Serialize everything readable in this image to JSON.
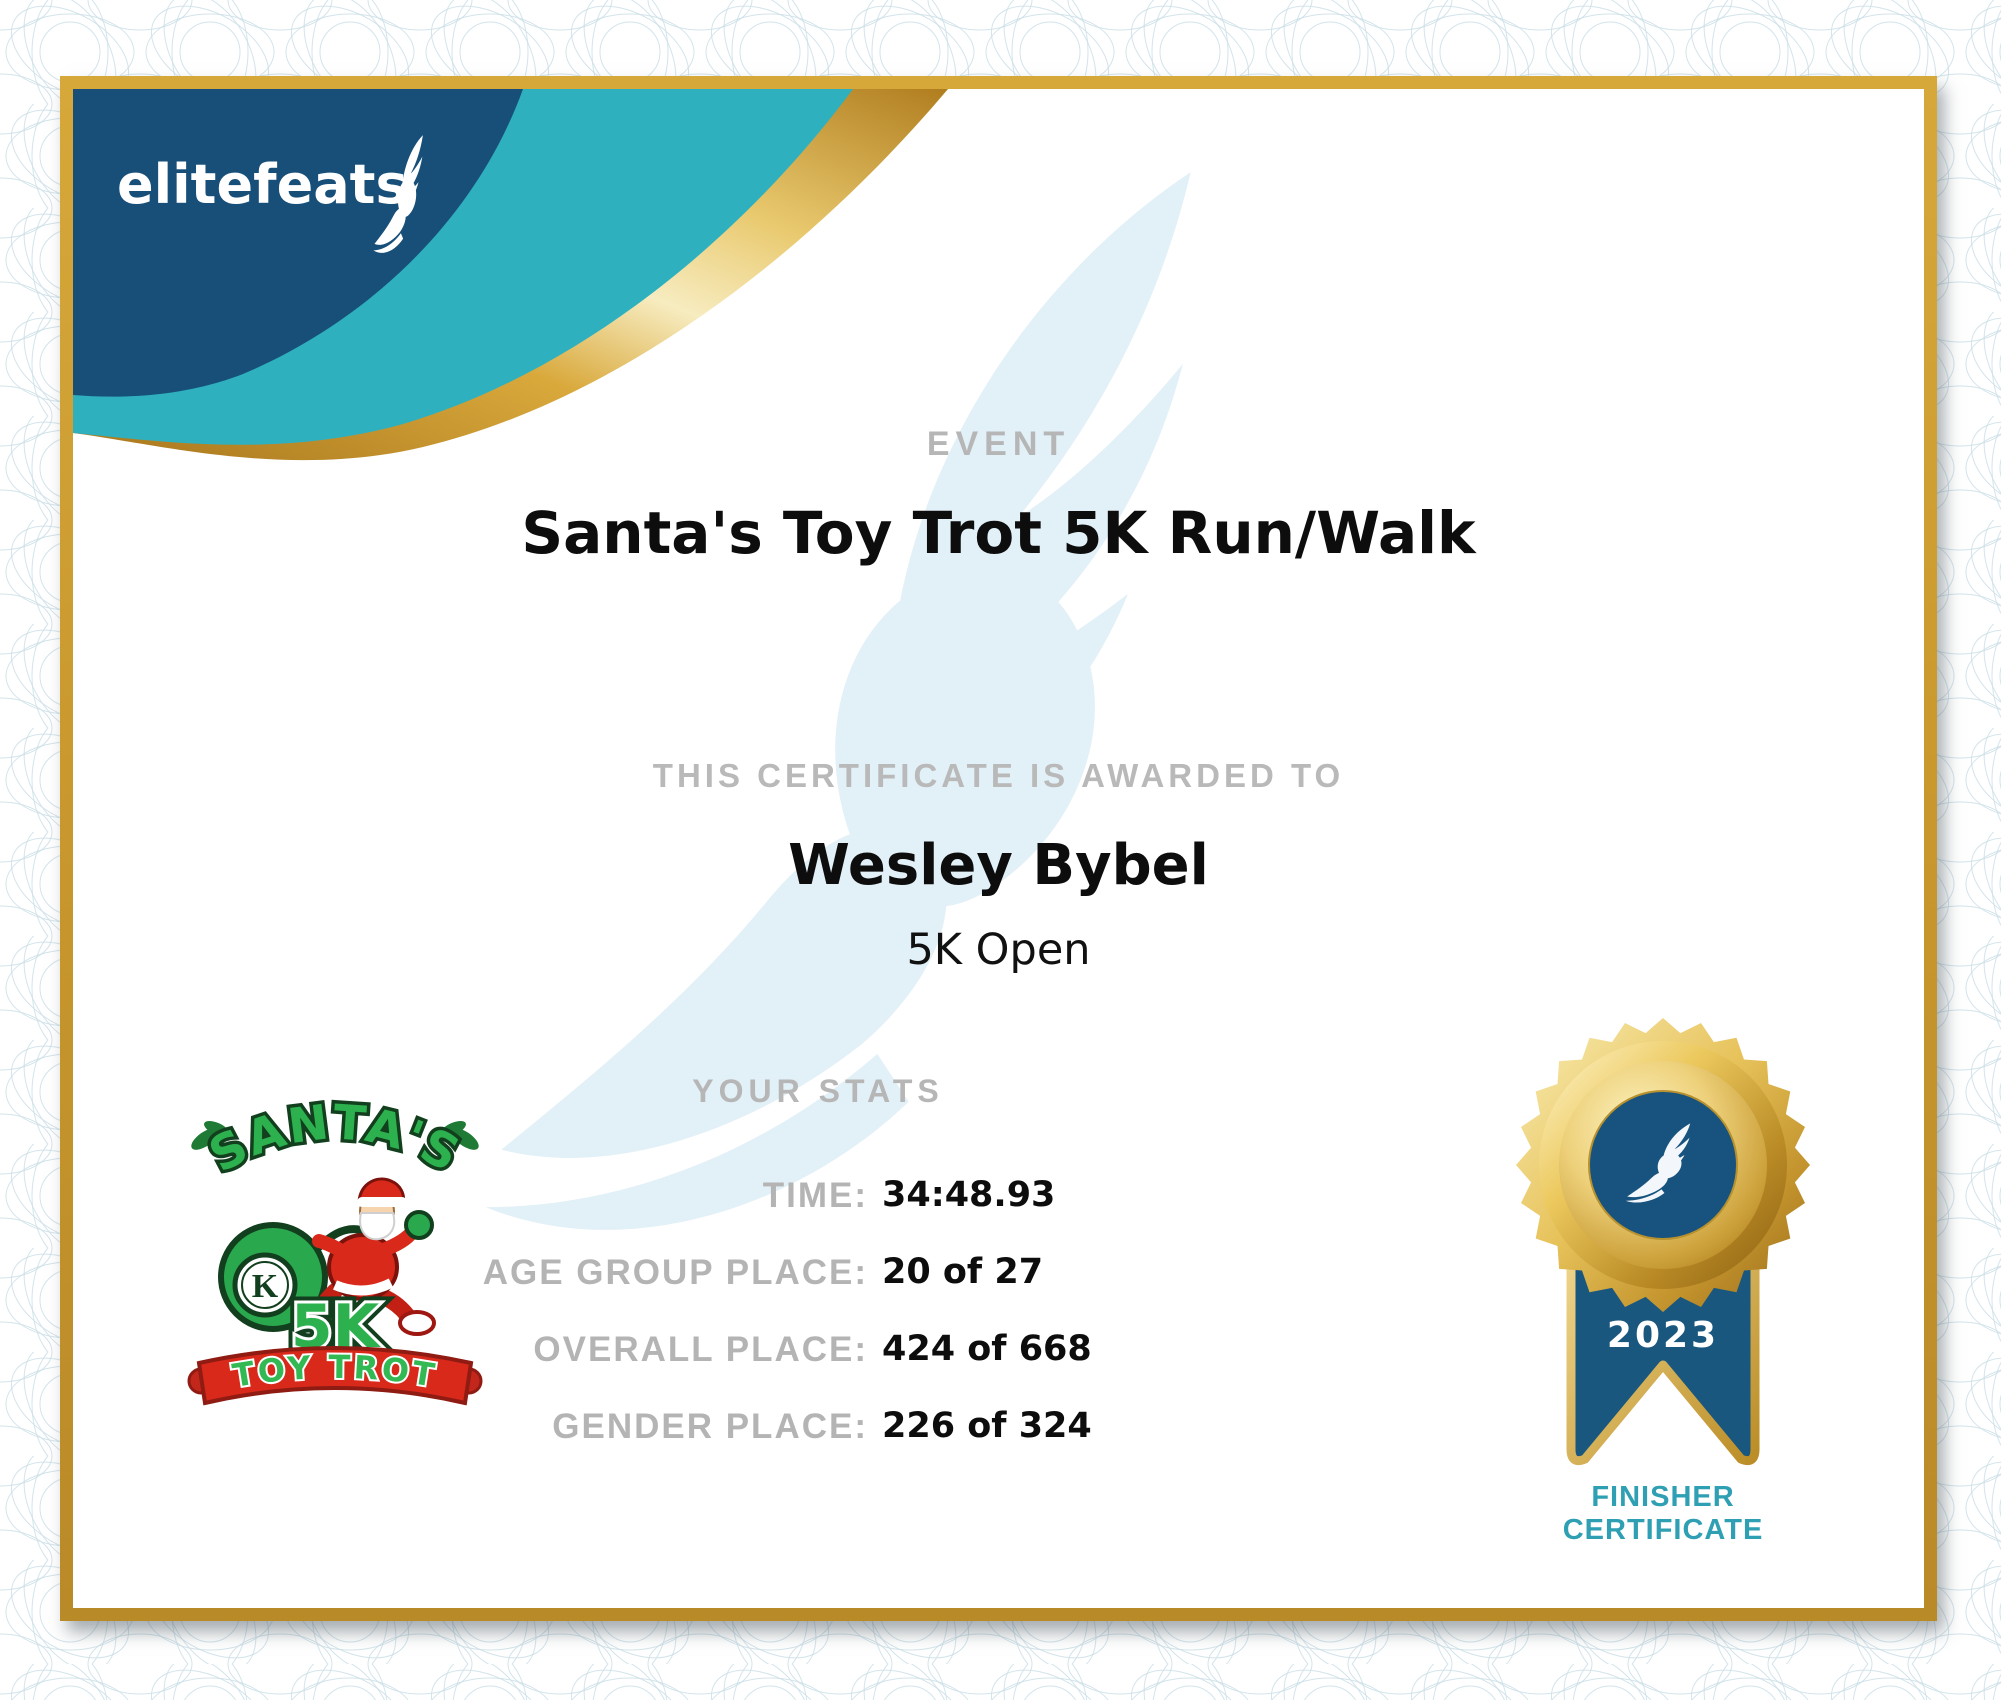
{
  "brand": {
    "logo_text": "elitefeats",
    "logo_icon": "winged-foot-icon"
  },
  "header": {
    "event_label": "EVENT",
    "event_name": "Santa's Toy Trot 5K Run/Walk"
  },
  "award": {
    "awarded_label": "THIS CERTIFICATE IS AWARDED TO",
    "recipient_name": "Wesley Bybel",
    "division": "5K Open"
  },
  "stats": {
    "section_label": "YOUR STATS",
    "rows": [
      {
        "label": "TIME:",
        "value": "34:48.93"
      },
      {
        "label": "AGE GROUP PLACE:",
        "value": "20 of 27"
      },
      {
        "label": "OVERALL PLACE:",
        "value": "424 of 668"
      },
      {
        "label": "GENDER PLACE:",
        "value": "226 of 324"
      }
    ]
  },
  "medal": {
    "year": "2023",
    "caption_line1": "FINISHER",
    "caption_line2": "CERTIFICATE",
    "icon": "winged-foot-icon"
  },
  "event_logo": {
    "title_arc": "SANTA'S",
    "distance": "5K",
    "banner": "TOY TROT",
    "badge_letter": "K"
  },
  "colors": {
    "navy": "#174f79",
    "teal": "#2fb0bf",
    "frame_gold": "#c9992e",
    "gold_light": "#f3dc92",
    "gold_dark": "#a8761c",
    "finisher_teal": "#2f9fb3",
    "label_gray": "#b6b6b6",
    "ink": "#0d0d0d",
    "watermark_blue": "#e2f0f7",
    "santa_green": "#2db14f",
    "santa_red": "#d8291a",
    "guilloche_line": "#cbdfe8"
  }
}
